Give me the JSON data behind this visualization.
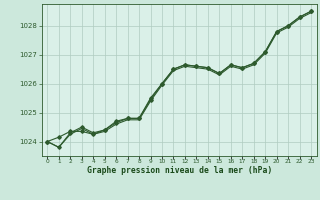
{
  "title": "Graphe pression niveau de la mer (hPa)",
  "background_color": "#cce8dc",
  "plot_bg_color": "#daf0e8",
  "line_color": "#2d5a2d",
  "grid_color": "#b0ccc0",
  "xlabel_color": "#1a4a1a",
  "xlim": [
    -0.5,
    23.5
  ],
  "ylim": [
    1023.5,
    1028.75
  ],
  "yticks": [
    1024,
    1025,
    1026,
    1027,
    1028
  ],
  "xticks": [
    0,
    1,
    2,
    3,
    4,
    5,
    6,
    7,
    8,
    9,
    10,
    11,
    12,
    13,
    14,
    15,
    16,
    17,
    18,
    19,
    20,
    21,
    22,
    23
  ],
  "series1": [
    1024.0,
    1023.8,
    1024.3,
    1024.5,
    1024.3,
    1024.4,
    1024.7,
    1024.8,
    1024.8,
    1025.5,
    1026.0,
    1026.5,
    1026.65,
    1026.6,
    1026.55,
    1026.35,
    1026.65,
    1026.55,
    1026.7,
    1027.1,
    1027.8,
    1028.0,
    1028.3,
    1028.5
  ],
  "series2": [
    1024.0,
    1024.15,
    1024.35,
    1024.35,
    1024.25,
    1024.4,
    1024.65,
    1024.8,
    1024.8,
    1025.45,
    1026.0,
    1026.5,
    1026.65,
    1026.6,
    1026.55,
    1026.35,
    1026.65,
    1026.55,
    1026.7,
    1027.1,
    1027.8,
    1028.0,
    1028.3,
    1028.5
  ],
  "series3": [
    1024.0,
    1023.8,
    1024.25,
    1024.45,
    1024.25,
    1024.35,
    1024.6,
    1024.75,
    1024.75,
    1025.4,
    1025.95,
    1026.45,
    1026.6,
    1026.55,
    1026.5,
    1026.3,
    1026.6,
    1026.5,
    1026.65,
    1027.05,
    1027.75,
    1027.95,
    1028.25,
    1028.45
  ]
}
